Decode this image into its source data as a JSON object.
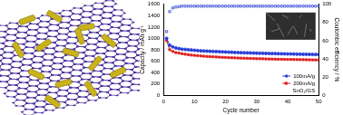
{
  "chart_data": {
    "type": "line",
    "x_label": "Cycle number",
    "y_label": "Capacity / mAh g⁻¹",
    "y2_label": "Coulombic efficiency / %",
    "x": [
      1,
      2,
      3,
      4,
      5,
      6,
      7,
      8,
      9,
      10,
      11,
      12,
      13,
      14,
      15,
      16,
      17,
      18,
      19,
      20,
      21,
      22,
      23,
      24,
      25,
      26,
      27,
      28,
      29,
      30,
      31,
      32,
      33,
      34,
      35,
      36,
      37,
      38,
      39,
      40,
      41,
      42,
      43,
      44,
      45,
      46,
      47,
      48,
      49,
      50
    ],
    "xlim": [
      0,
      50
    ],
    "xticks": [
      0,
      10,
      20,
      30,
      40,
      50
    ],
    "ylim": [
      0,
      1600
    ],
    "yticks": [
      0,
      200,
      400,
      600,
      800,
      1000,
      1200,
      1400,
      1600
    ],
    "y2lim": [
      0,
      100
    ],
    "y2ticks": [
      0,
      20,
      40,
      60,
      80,
      100
    ],
    "grid": false,
    "legend": "lower right",
    "annotations": [
      {
        "text": "SnO₂/GS"
      }
    ],
    "series": [
      {
        "name": "100mA/g",
        "color": "#2a3fd6",
        "marker": "circle",
        "line_style": "solid",
        "values": [
          1000,
          880,
          850,
          830,
          820,
          810,
          805,
          800,
          795,
          790,
          785,
          780,
          778,
          775,
          772,
          770,
          768,
          765,
          762,
          760,
          758,
          755,
          752,
          750,
          748,
          746,
          745,
          743,
          741,
          740,
          738,
          737,
          735,
          734,
          732,
          731,
          730,
          728,
          727,
          726,
          725,
          724,
          722,
          721,
          720,
          719,
          718,
          717,
          716,
          715
        ]
      },
      {
        "name": "200mA/g",
        "color": "#e02020",
        "marker": "square",
        "line_style": "solid",
        "values": [
          960,
          800,
          770,
          750,
          740,
          730,
          720,
          712,
          705,
          700,
          695,
          690,
          686,
          682,
          678,
          675,
          672,
          669,
          666,
          663,
          660,
          658,
          656,
          654,
          652,
          650,
          648,
          646,
          644,
          642,
          641,
          640,
          638,
          636,
          635,
          634,
          632,
          631,
          630,
          629,
          628,
          627,
          626,
          625,
          624,
          623,
          622,
          621,
          620,
          619
        ]
      },
      {
        "color": "#2a3fd6",
        "marker": "open_square",
        "line_style": "none",
        "axis": "y2",
        "values": [
          70,
          92,
          96,
          97,
          97.5,
          98,
          98,
          98,
          98,
          98,
          98,
          98,
          98,
          98,
          98,
          98,
          98,
          98,
          98,
          98,
          98,
          98,
          98,
          98,
          98,
          98,
          98,
          98,
          98,
          98,
          98,
          98,
          98,
          98,
          98,
          98,
          98,
          98,
          98,
          98,
          98,
          98,
          98,
          98,
          98,
          98,
          98,
          98,
          98,
          98
        ]
      }
    ]
  }
}
